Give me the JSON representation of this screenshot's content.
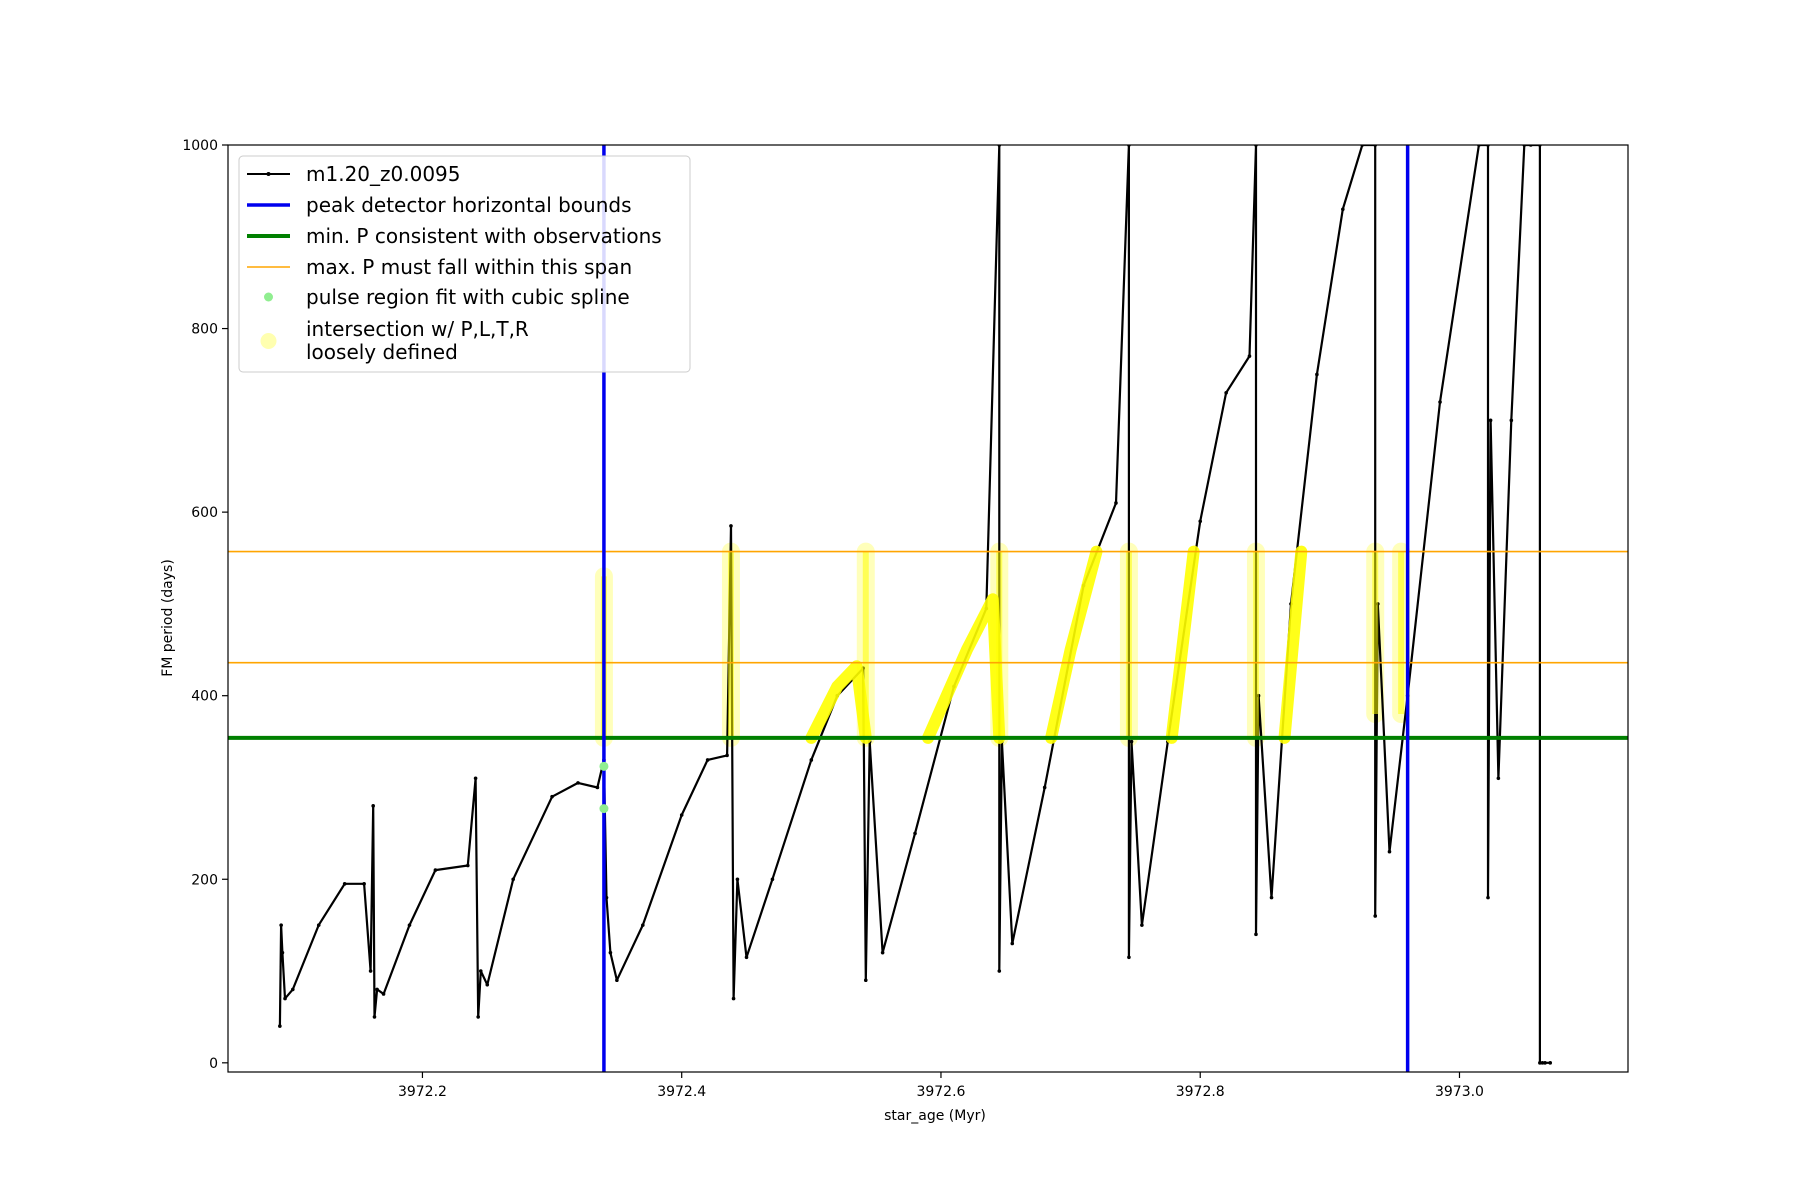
{
  "chart_data": {
    "type": "line",
    "xlabel": "star_age (Myr)",
    "ylabel": "FM period (days)",
    "xlim": [
      3972.05,
      3973.13
    ],
    "ylim": [
      -10,
      1000
    ],
    "xticks": [
      3972.2,
      3972.4,
      3972.6,
      3972.8,
      3973.0
    ],
    "xtick_labels": [
      "3972.2",
      "3972.4",
      "3972.6",
      "3972.8",
      "3973.0"
    ],
    "yticks": [
      0,
      200,
      400,
      600,
      800,
      1000
    ],
    "ytick_labels": [
      "0",
      "200",
      "400",
      "600",
      "800",
      "1000"
    ],
    "legend_position": "top-left",
    "legend": [
      {
        "key": "series",
        "label": "m1.20_z0.0095"
      },
      {
        "key": "bounds",
        "label": "peak detector horizontal bounds"
      },
      {
        "key": "minP",
        "label": "min. P consistent with observations"
      },
      {
        "key": "maxP",
        "label": "max. P must fall within this span"
      },
      {
        "key": "spline",
        "label": "pulse region fit with cubic spline"
      },
      {
        "key": "intersect",
        "label": "intersection w/ P,L,T,R",
        "label2": "loosely defined"
      }
    ],
    "colors": {
      "series": "#000000",
      "bounds": "#0000ee",
      "minP": "#008000",
      "maxP": "#ffa500",
      "spline": "#90ee90",
      "intersect": "#ffff00",
      "intersect_pale": "#ffffb0"
    },
    "vertical_bounds": [
      3972.34,
      3972.96
    ],
    "min_P": 354,
    "max_P_span": [
      436,
      557
    ],
    "series": [
      {
        "name": "m1.20_z0.0095",
        "x": [
          3972.09,
          3972.091,
          3972.092,
          3972.094,
          3972.1,
          3972.12,
          3972.14,
          3972.155,
          3972.16,
          3972.162,
          3972.163,
          3972.165,
          3972.17,
          3972.19,
          3972.21,
          3972.235,
          3972.241,
          3972.243,
          3972.245,
          3972.25,
          3972.27,
          3972.3,
          3972.32,
          3972.335,
          3972.34,
          3972.342,
          3972.345,
          3972.35,
          3972.37,
          3972.4,
          3972.42,
          3972.435,
          3972.438,
          3972.44,
          3972.443,
          3972.45,
          3972.47,
          3972.5,
          3972.52,
          3972.54,
          3972.542,
          3972.545,
          3972.555,
          3972.58,
          3972.61,
          3972.635,
          3972.645,
          3972.645,
          3972.647,
          3972.655,
          3972.68,
          3972.71,
          3972.735,
          3972.745,
          3972.745,
          3972.747,
          3972.755,
          3972.775,
          3972.8,
          3972.82,
          3972.838,
          3972.843,
          3972.843,
          3972.845,
          3972.855,
          3972.87,
          3972.89,
          3972.91,
          3972.925,
          3972.935,
          3972.935,
          3972.937,
          3972.946,
          3972.96,
          3972.985,
          3973.015,
          3973.022,
          3973.022,
          3973.024,
          3973.03,
          3973.04,
          3973.05,
          3973.055,
          3973.062,
          3973.062,
          3973.064,
          3973.066,
          3973.07
        ],
        "y": [
          40,
          150,
          120,
          70,
          80,
          150,
          195,
          195,
          100,
          280,
          50,
          80,
          75,
          150,
          210,
          215,
          310,
          50,
          100,
          85,
          200,
          290,
          305,
          300,
          330,
          180,
          120,
          90,
          150,
          270,
          330,
          335,
          585,
          70,
          200,
          115,
          200,
          330,
          400,
          430,
          90,
          350,
          120,
          250,
          410,
          495,
          1000,
          100,
          350,
          130,
          300,
          520,
          610,
          1000,
          115,
          350,
          150,
          350,
          590,
          730,
          770,
          1000,
          140,
          400,
          180,
          500,
          750,
          930,
          1000,
          1000,
          160,
          500,
          230,
          400,
          720,
          1000,
          1000,
          180,
          700,
          310,
          700,
          1000,
          1000,
          1000,
          0,
          0,
          0,
          0
        ]
      }
    ],
    "yellow_arcs": [
      {
        "x": [
          3972.5,
          3972.52,
          3972.535,
          3972.542
        ],
        "y": [
          354,
          410,
          432,
          354
        ]
      },
      {
        "x": [
          3972.59,
          3972.62,
          3972.64,
          3972.645
        ],
        "y": [
          354,
          450,
          505,
          354
        ]
      },
      {
        "x": [
          3972.685,
          3972.7,
          3972.72
        ],
        "y": [
          354,
          450,
          557
        ]
      },
      {
        "x": [
          3972.778,
          3972.795
        ],
        "y": [
          354,
          557
        ]
      },
      {
        "x": [
          3972.865,
          3972.878
        ],
        "y": [
          354,
          557
        ]
      }
    ],
    "yellow_columns": [
      {
        "x": 3972.34,
        "y": [
          354,
          530
        ]
      },
      {
        "x": 3972.438,
        "y": [
          354,
          557
        ]
      },
      {
        "x": 3972.542,
        "y": [
          354,
          557
        ]
      },
      {
        "x": 3972.645,
        "y": [
          354,
          557
        ]
      },
      {
        "x": 3972.745,
        "y": [
          354,
          557
        ]
      },
      {
        "x": 3972.843,
        "y": [
          354,
          557
        ]
      },
      {
        "x": 3972.935,
        "y": [
          380,
          557
        ]
      },
      {
        "x": 3972.955,
        "y": [
          380,
          557
        ]
      }
    ],
    "spline_points": {
      "x": [
        3972.34,
        3972.34
      ],
      "y": [
        323,
        277
      ]
    }
  }
}
